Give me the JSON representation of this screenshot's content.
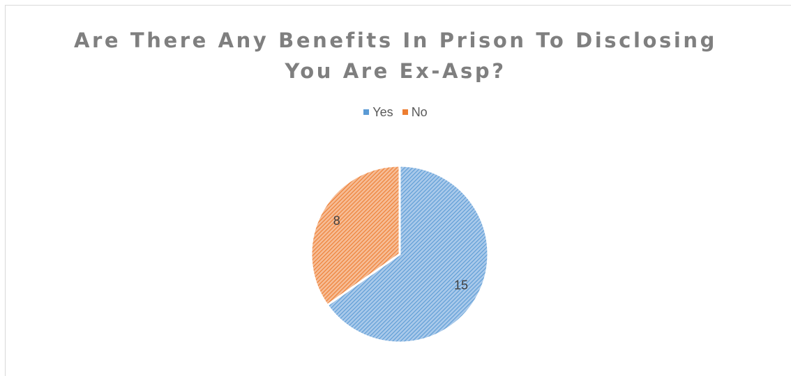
{
  "chart_data": {
    "type": "pie",
    "title": "Are There Any Benefits In Prison To Disclosing You Are Ex-Asp?",
    "title_lines": [
      "Are There Any Benefits In Prison To Disclosing",
      "You Are Ex-Asp?"
    ],
    "categories": [
      "Yes",
      "No"
    ],
    "values": [
      15,
      8
    ],
    "colors": [
      "#5b9bd5",
      "#ed7d31"
    ],
    "legend_position": "top",
    "data_labels": [
      "15",
      "8"
    ]
  }
}
